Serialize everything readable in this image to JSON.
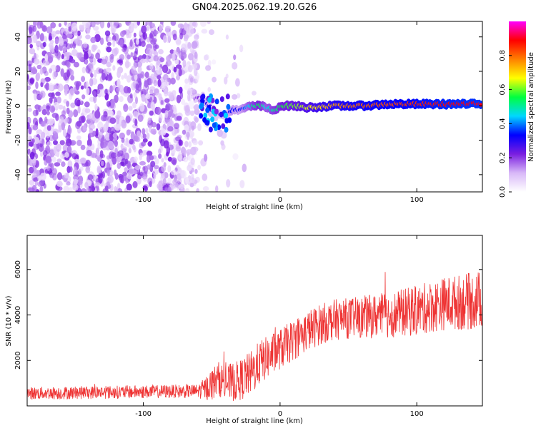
{
  "title": "GN04.2025.062.19.20.G26",
  "chart_data": [
    {
      "type": "heatmap",
      "xlabel": "Height of straight line (km)",
      "ylabel": "Frequency (Hz)",
      "xlim": [
        -185,
        148
      ],
      "ylim": [
        -50,
        49
      ],
      "x_ticks": [
        -100,
        0,
        100
      ],
      "y_ticks": [
        -40,
        -20,
        0,
        20,
        40
      ],
      "colorbar": {
        "label": "Normalized spectral amplitude",
        "ticks": [
          0.0,
          0.2,
          0.4,
          0.6,
          0.8
        ],
        "range": [
          0,
          1
        ],
        "colors": [
          "#ffffff",
          "#d8b8f8",
          "#7a1ee0",
          "#0000ff",
          "#00d8ff",
          "#00ff40",
          "#ffff00",
          "#ff8000",
          "#ff0000",
          "#ff00ff"
        ]
      },
      "ridge": {
        "x": [
          -60,
          -55,
          -50,
          -45,
          -40,
          -35,
          -30,
          -25,
          -20,
          -15,
          -10,
          -5,
          0,
          10,
          20,
          40,
          60,
          80,
          100,
          120,
          148
        ],
        "y": [
          4,
          3,
          -2,
          -5,
          -6,
          -2,
          -3,
          -1,
          0,
          0,
          -1,
          -3,
          0,
          0,
          -1,
          0,
          0,
          1,
          1,
          1,
          1
        ],
        "amplitude": [
          0.2,
          0.3,
          0.25,
          0.2,
          0.25,
          0.35,
          0.3,
          0.4,
          0.5,
          0.55,
          0.45,
          0.5,
          0.55,
          0.6,
          0.65,
          0.75,
          0.8,
          0.82,
          0.85,
          0.88,
          0.9
        ]
      }
    },
    {
      "type": "line",
      "xlabel": "Height of straight line (km)",
      "ylabel": "SNR (10 * v/v)",
      "xlim": [
        -185,
        148
      ],
      "ylim": [
        0,
        7500
      ],
      "x_ticks": [
        -100,
        0,
        100
      ],
      "y_ticks": [
        2000,
        4000,
        6000
      ],
      "color": "#ee3333",
      "trend": {
        "x": [
          -185,
          -150,
          -100,
          -60,
          -55,
          -50,
          -45,
          -40,
          -30,
          -20,
          -15,
          -10,
          -5,
          0,
          10,
          20,
          30,
          40,
          60,
          80,
          100,
          120,
          140,
          148
        ],
        "y": [
          550,
          580,
          620,
          650,
          750,
          950,
          1200,
          1000,
          1100,
          1500,
          1900,
          2100,
          2300,
          2500,
          2900,
          3300,
          3600,
          3800,
          3900,
          4000,
          4200,
          4500,
          4600,
          4700
        ]
      },
      "noise": {
        "x": [
          -185,
          -60,
          -50,
          -20,
          0,
          50,
          100,
          148
        ],
        "amp": [
          280,
          300,
          700,
          1000,
          900,
          900,
          1100,
          1300
        ]
      }
    }
  ]
}
